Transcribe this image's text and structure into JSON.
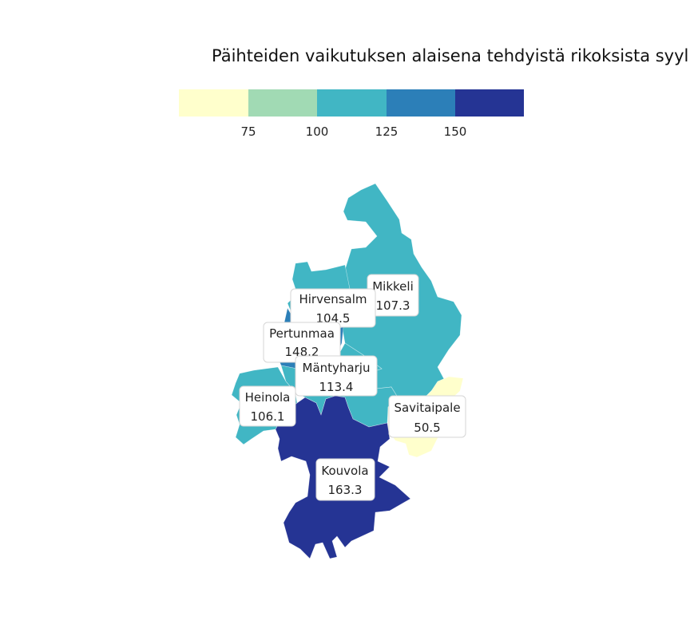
{
  "title": "Päihteiden vaikutuksen alaisena tehdyistä rikoksista syylli",
  "legend": {
    "colors": [
      "#ffffcc",
      "#a1dab4",
      "#41b6c4",
      "#2c7fb8",
      "#253494"
    ],
    "breaks": [
      "75",
      "100",
      "125",
      "150"
    ]
  },
  "regions": [
    {
      "id": "mikkeli",
      "name": "Mikkeli",
      "value": "107.3",
      "color": "#41b6c4"
    },
    {
      "id": "hirvensalmi",
      "name": "Hirvensalm",
      "value": "104.5",
      "color": "#41b6c4"
    },
    {
      "id": "pertunmaa",
      "name": "Pertunmaa",
      "value": "148.2",
      "color": "#2c7fb8"
    },
    {
      "id": "mantyharju",
      "name": "Mäntyharju",
      "value": "113.4",
      "color": "#41b6c4"
    },
    {
      "id": "heinola",
      "name": "Heinola",
      "value": "106.1",
      "color": "#41b6c4"
    },
    {
      "id": "savitaipale",
      "name": "Savitaipale",
      "value": "50.5",
      "color": "#ffffcc"
    },
    {
      "id": "kouvola",
      "name": "Kouvola",
      "value": "163.3",
      "color": "#253494"
    }
  ]
}
